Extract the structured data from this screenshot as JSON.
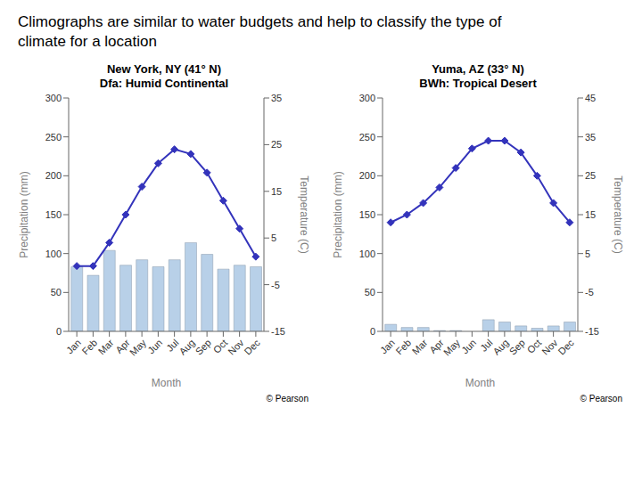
{
  "title": "Climographs are similar to water budgets and help to classify the type of\nclimate for a location",
  "chart_data": [
    {
      "type": "bar",
      "title": "New York, NY (41° N)",
      "subtitle": "Dfa: Humid Continental",
      "x_label": "Month",
      "y_label": "Precipitation (mm)",
      "y2_label": "Temperature (C)",
      "categories": [
        "Jan",
        "Feb",
        "Mar",
        "Apr",
        "May",
        "Jun",
        "Jul",
        "Aug",
        "Sep",
        "Oct",
        "Nov",
        "Dec"
      ],
      "series": [
        {
          "type": "bar",
          "color": "#b8d0e8",
          "values": [
            83,
            72,
            104,
            85,
            92,
            83,
            92,
            114,
            99,
            80,
            85,
            83
          ]
        },
        {
          "type": "line",
          "axis": "y2",
          "color": "#3333bb",
          "marker": "diamond",
          "values": [
            -1,
            -1,
            4,
            10,
            16,
            21,
            24,
            23,
            19,
            13,
            7,
            1
          ]
        }
      ],
      "ylim": [
        0,
        300
      ],
      "yticks": [
        0,
        50,
        100,
        150,
        200,
        250,
        300
      ],
      "y2lim": [
        -15,
        35
      ],
      "y2ticks": [
        -15,
        -5,
        5,
        15,
        25,
        35
      ],
      "grid": false,
      "annotations": [
        "© Pearson"
      ]
    },
    {
      "type": "bar",
      "title": "Yuma, AZ (33° N)",
      "subtitle": "BWh: Tropical Desert",
      "x_label": "Month",
      "y_label": "Precipitation (mm)",
      "y2_label": "Temperature (C)",
      "categories": [
        "Jan",
        "Feb",
        "Mar",
        "Apr",
        "May",
        "Jun",
        "Jul",
        "Aug",
        "Sep",
        "Oct",
        "Nov",
        "Dec"
      ],
      "series": [
        {
          "type": "bar",
          "color": "#b8d0e8",
          "values": [
            9,
            5,
            5,
            1,
            1,
            0,
            15,
            12,
            7,
            4,
            7,
            12
          ]
        },
        {
          "type": "line",
          "axis": "y2",
          "color": "#3333bb",
          "marker": "diamond",
          "values": [
            13,
            15,
            18,
            22,
            27,
            32,
            34,
            34,
            31,
            25,
            18,
            13
          ]
        }
      ],
      "ylim": [
        0,
        300
      ],
      "yticks": [
        0,
        50,
        100,
        150,
        200,
        250,
        300
      ],
      "y2lim": [
        -15,
        45
      ],
      "y2ticks": [
        -15,
        -5,
        5,
        15,
        25,
        35,
        45
      ],
      "grid": false,
      "annotations": [
        "© Pearson"
      ]
    }
  ]
}
